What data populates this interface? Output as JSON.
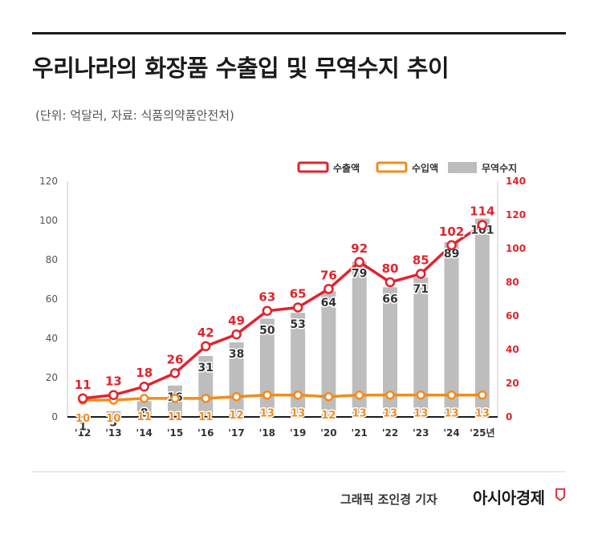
{
  "header": {
    "title": "우리나라의 화장품 수출입 및 무역수지 추이",
    "subtitle": "(단위: 억달러, 자료: 식품의약품안전처)"
  },
  "footer": {
    "credit": "그래픽  조인경 기자",
    "brand": "아시아경제"
  },
  "colors": {
    "export": "#e0242e",
    "import": "#f08c1e",
    "balance": "#bdbdbd"
  },
  "chart_data": {
    "type": "bar+line",
    "categories": [
      "'12",
      "'13",
      "'14",
      "'15",
      "'16",
      "'17",
      "'18",
      "'19",
      "'20",
      "'21",
      "'22",
      "'23",
      "'24",
      "'25년"
    ],
    "legend": [
      "수출액",
      "수입액",
      "무역수지"
    ],
    "legend_position": "top-right",
    "series": [
      {
        "name": "수출액",
        "type": "line",
        "axis": "right",
        "values": [
          11,
          13,
          18,
          26,
          42,
          49,
          63,
          65,
          76,
          92,
          80,
          85,
          102,
          114
        ]
      },
      {
        "name": "수입액",
        "type": "line",
        "axis": "right",
        "values": [
          10,
          10,
          11,
          11,
          11,
          12,
          13,
          13,
          12,
          13,
          13,
          13,
          13,
          13
        ]
      },
      {
        "name": "무역수지",
        "type": "bar",
        "axis": "left",
        "values": [
          1,
          3,
          8,
          16,
          31,
          38,
          50,
          53,
          64,
          79,
          66,
          71,
          89,
          101
        ]
      }
    ],
    "left_axis": {
      "min": 0,
      "max": 120,
      "ticks": [
        0,
        20,
        40,
        60,
        80,
        100,
        120
      ]
    },
    "right_axis": {
      "min": 0,
      "max": 140,
      "ticks": [
        0,
        20,
        40,
        60,
        80,
        100,
        120,
        140
      ]
    },
    "grid": false
  }
}
